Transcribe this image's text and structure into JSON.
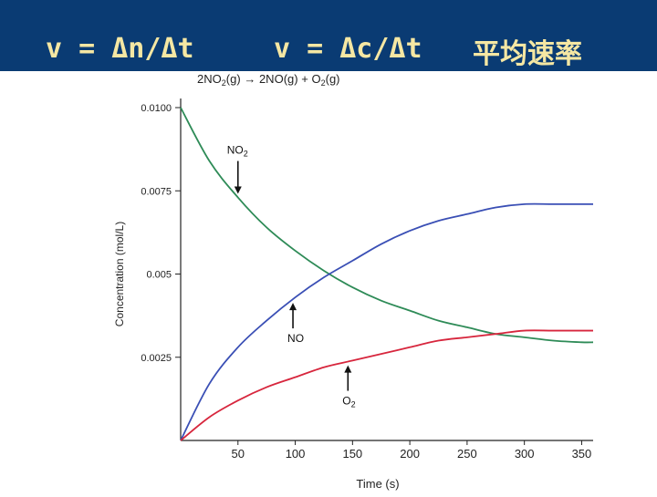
{
  "slide": {
    "formula_moles": "v = Δn/Δt",
    "formula_conc": "v = Δc/Δt",
    "chinese_title": "平均速率"
  },
  "chart_data": {
    "type": "line",
    "title_reaction": "2NO2(g) → 2NO(g) + O2(g)",
    "xlabel": "Time (s)",
    "ylabel": "Concentration (mol/L)",
    "xlim": [
      0,
      360
    ],
    "ylim": [
      0,
      0.01
    ],
    "x_ticks": [
      50,
      100,
      150,
      200,
      250,
      300,
      350
    ],
    "y_ticks": [
      0.0025,
      0.005,
      0.0075,
      0.01
    ],
    "y_tick_labels": [
      "0.0025",
      "0.005",
      "0.0075",
      "0.0100"
    ],
    "x": [
      0,
      25,
      50,
      75,
      100,
      125,
      150,
      175,
      200,
      225,
      250,
      275,
      300,
      325,
      350,
      360
    ],
    "series": [
      {
        "name": "NO2",
        "color": "#2e8b57",
        "values": [
          0.01,
          0.0084,
          0.0073,
          0.0064,
          0.0057,
          0.0051,
          0.0046,
          0.0042,
          0.0039,
          0.0036,
          0.0034,
          0.0032,
          0.0031,
          0.003,
          0.00295,
          0.00295
        ]
      },
      {
        "name": "NO",
        "color": "#3a4fb5",
        "values": [
          0.0,
          0.0017,
          0.0028,
          0.0036,
          0.0043,
          0.0049,
          0.0054,
          0.0059,
          0.0063,
          0.0066,
          0.0068,
          0.007,
          0.0071,
          0.0071,
          0.0071,
          0.0071
        ]
      },
      {
        "name": "O2",
        "color": "#d7263d",
        "values": [
          0.0,
          0.0007,
          0.0012,
          0.0016,
          0.0019,
          0.0022,
          0.0024,
          0.0026,
          0.0028,
          0.003,
          0.0031,
          0.0032,
          0.0033,
          0.0033,
          0.0033,
          0.0033
        ]
      }
    ],
    "annotations": [
      {
        "label_main": "NO",
        "label_sub": "2",
        "series": "NO2",
        "x": 50
      },
      {
        "label_main": "NO",
        "label_sub": "",
        "series": "NO",
        "x": 98
      },
      {
        "label_main": "O",
        "label_sub": "2",
        "series": "O2",
        "x": 146
      }
    ]
  }
}
